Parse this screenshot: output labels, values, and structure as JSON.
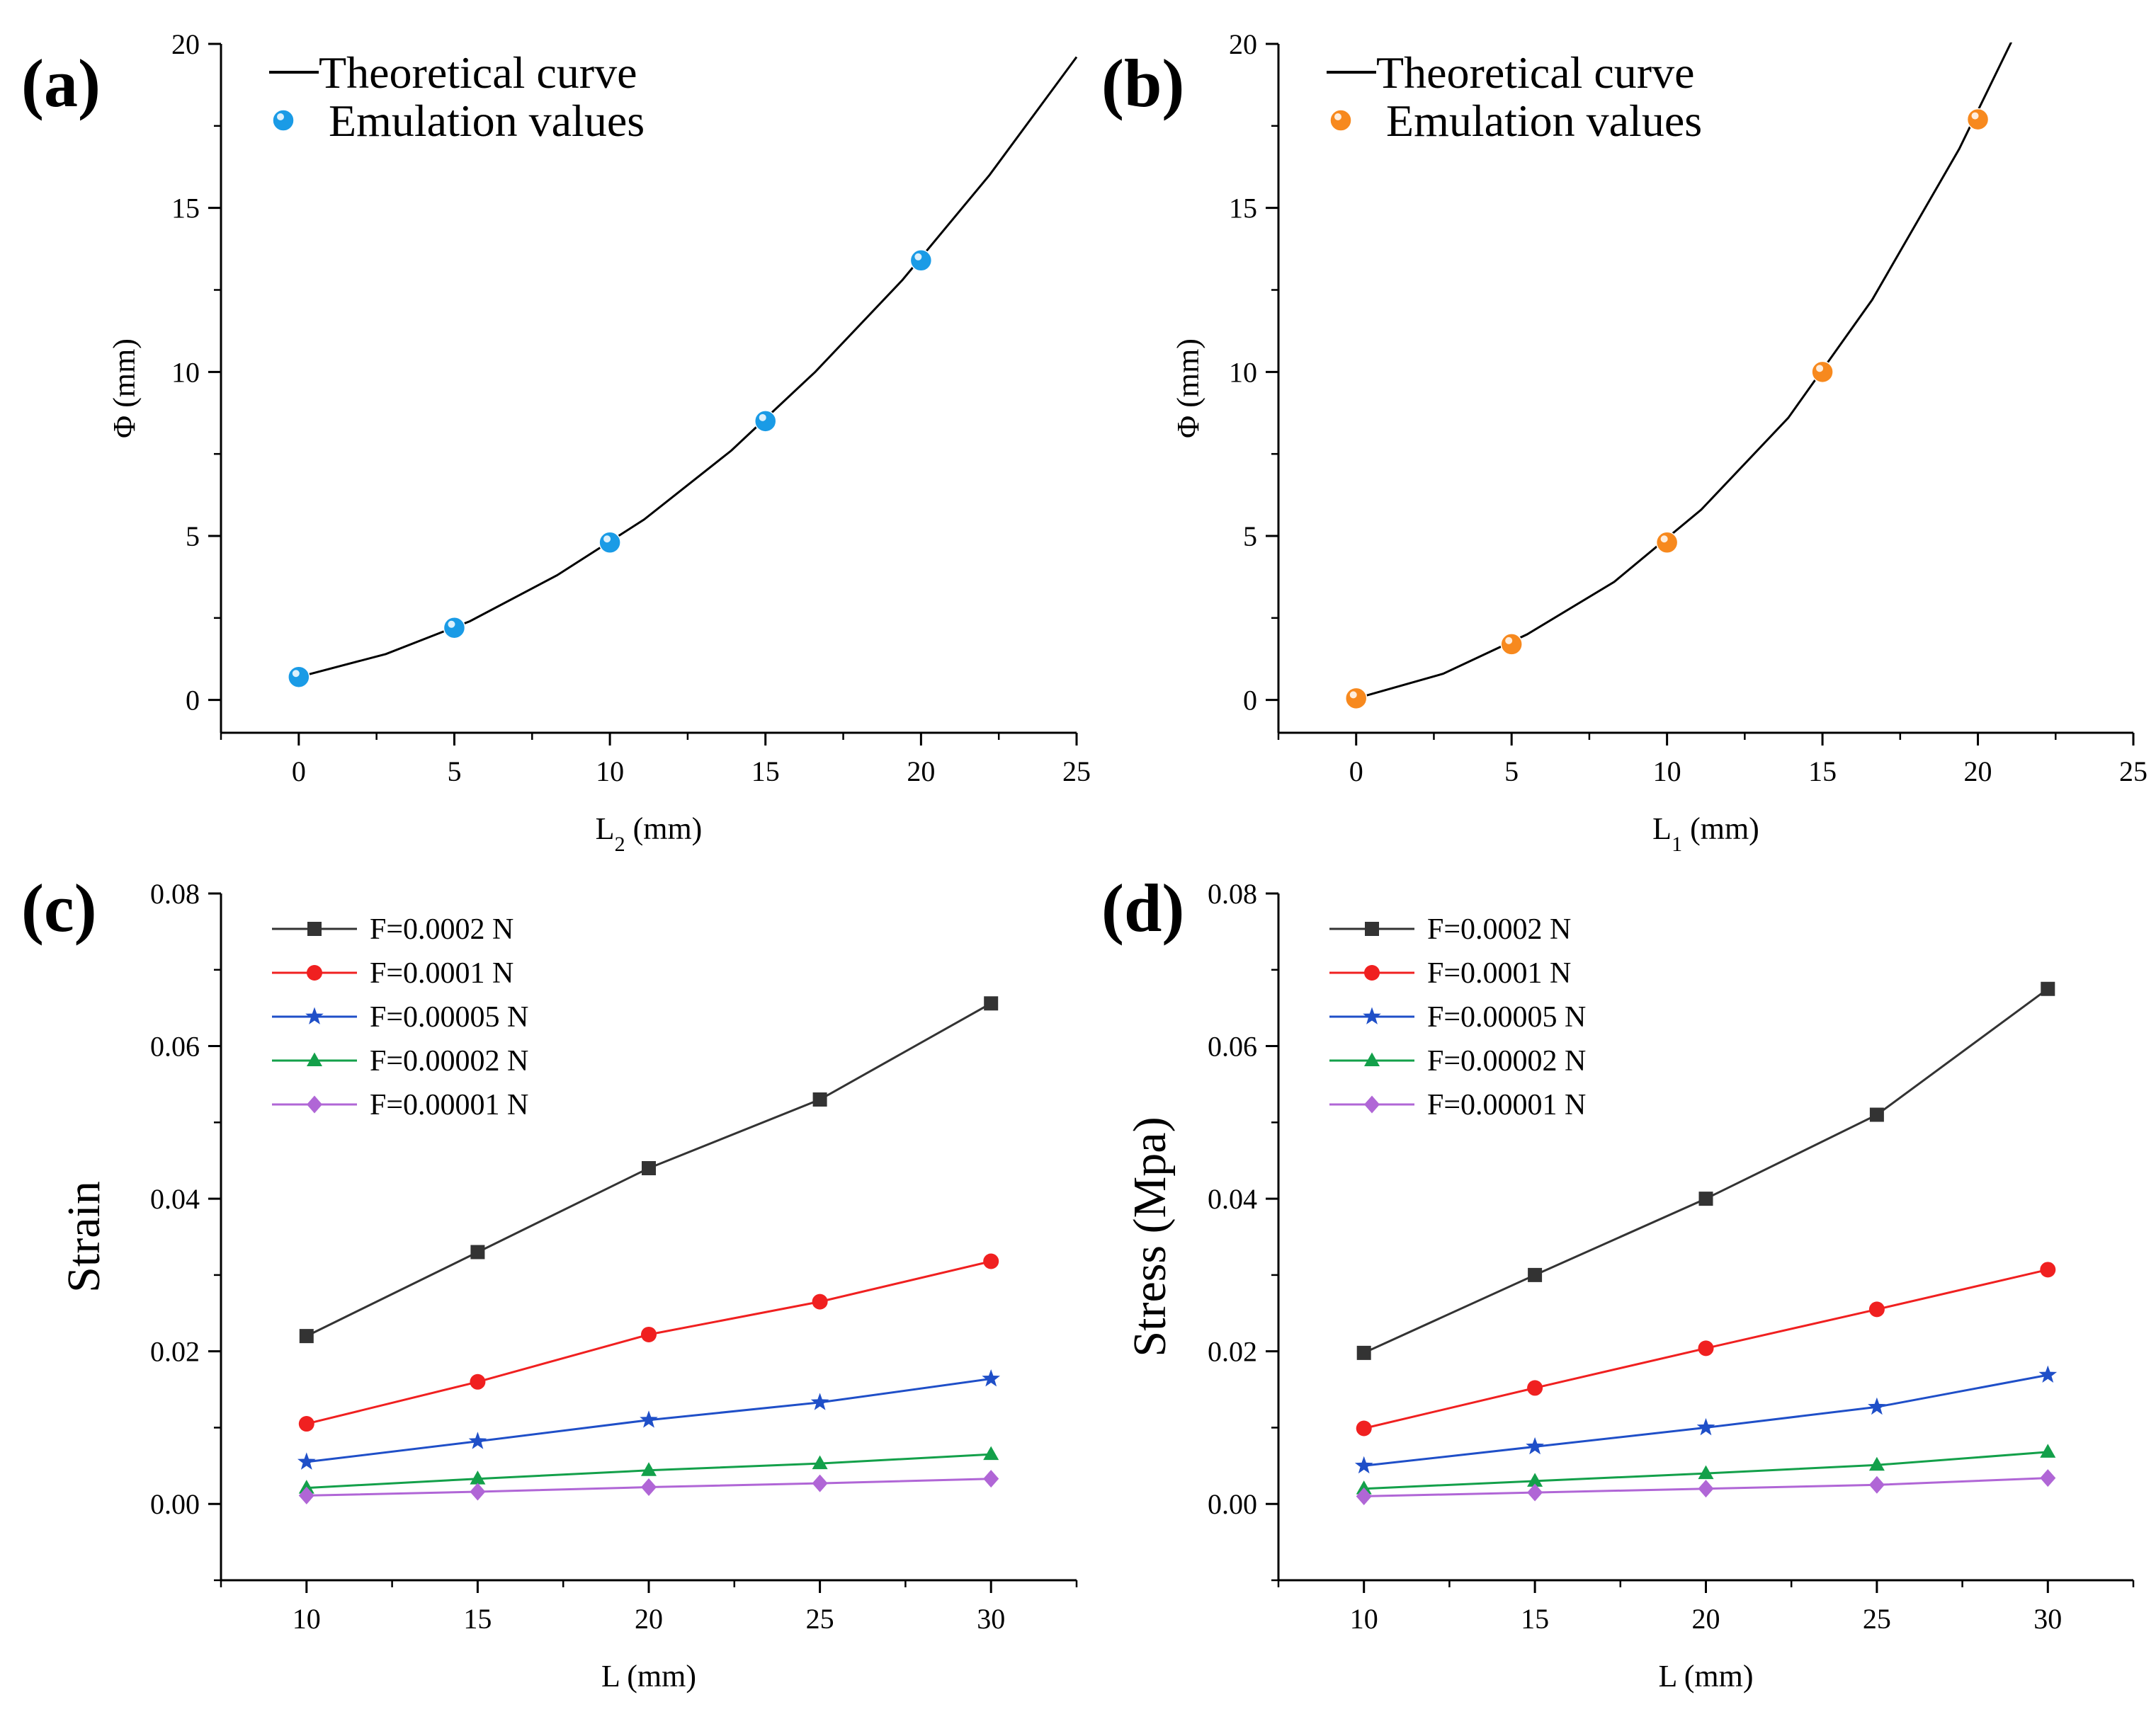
{
  "panels": {
    "a": {
      "label": "(a)"
    },
    "b": {
      "label": "(b)"
    },
    "c": {
      "label": "(c)"
    },
    "d": {
      "label": "(d)"
    }
  },
  "chart_data": [
    {
      "id": "a",
      "type": "line",
      "title": "",
      "xlabel": "L₂ (mm)",
      "xlabel_main": "L",
      "xlabel_sub": "2",
      "xlabel_unit": " (mm)",
      "ylabel": "Φ (mm)",
      "xlim": [
        -2.5,
        25
      ],
      "ylim": [
        -1,
        20
      ],
      "xticks": [
        0,
        5,
        10,
        15,
        20,
        25
      ],
      "yticks": [
        0,
        5,
        10,
        15,
        20
      ],
      "legend_position": "top-left",
      "series": [
        {
          "name": "Theoretical curve",
          "kind": "line",
          "color": "#000000",
          "x": [
            0,
            2.8,
            5.5,
            8.3,
            11.1,
            13.9,
            16.6,
            19.4,
            22.2,
            25
          ],
          "y": [
            0.7,
            1.4,
            2.4,
            3.8,
            5.5,
            7.6,
            10.0,
            12.8,
            16.0,
            19.6
          ]
        },
        {
          "name": "Emulation values",
          "kind": "scatter",
          "color": "#1a9be6",
          "x": [
            0,
            5,
            10,
            15,
            20
          ],
          "y": [
            0.7,
            2.2,
            4.8,
            8.5,
            13.4
          ]
        }
      ]
    },
    {
      "id": "b",
      "type": "line",
      "title": "",
      "xlabel": "L₁ (mm)",
      "xlabel_main": "L",
      "xlabel_sub": "1",
      "xlabel_unit": " (mm)",
      "ylabel": "Φ (mm)",
      "xlim": [
        -2.5,
        25
      ],
      "ylim": [
        -1,
        20
      ],
      "xticks": [
        0,
        5,
        10,
        15,
        20,
        25
      ],
      "yticks": [
        0,
        5,
        10,
        15,
        20
      ],
      "legend_position": "top-left",
      "series": [
        {
          "name": "Theoretical curve",
          "kind": "line",
          "color": "#000000",
          "x": [
            0,
            2.8,
            5.5,
            8.3,
            11.1,
            13.9,
            16.6,
            19.4,
            21.2
          ],
          "y": [
            0.05,
            0.8,
            2.0,
            3.6,
            5.8,
            8.6,
            12.2,
            16.8,
            20.3
          ]
        },
        {
          "name": "Emulation values",
          "kind": "scatter",
          "color": "#f7891e",
          "x": [
            0,
            5,
            10,
            15,
            20
          ],
          "y": [
            0.05,
            1.7,
            4.8,
            10.0,
            17.7
          ]
        }
      ]
    },
    {
      "id": "c",
      "type": "line",
      "title": "",
      "xlabel": "L (mm)",
      "ylabel": "Strain",
      "xlim": [
        7.5,
        32.5
      ],
      "ylim": [
        -0.01,
        0.08
      ],
      "xticks": [
        10,
        15,
        20,
        25,
        30
      ],
      "yticks": [
        0.0,
        0.02,
        0.04,
        0.06,
        0.08
      ],
      "legend_position": "top-left",
      "series": [
        {
          "name": "F=0.0002 N",
          "marker": "square",
          "color": "#333333",
          "x": [
            10,
            15,
            20,
            25,
            30
          ],
          "y": [
            0.022,
            0.033,
            0.044,
            0.053,
            0.0656
          ]
        },
        {
          "name": "F=0.0001 N",
          "marker": "circle",
          "color": "#f02020",
          "x": [
            10,
            15,
            20,
            25,
            30
          ],
          "y": [
            0.0105,
            0.016,
            0.0222,
            0.0265,
            0.0318
          ]
        },
        {
          "name": "F=0.00005 N",
          "marker": "star",
          "color": "#1f4fc8",
          "x": [
            10,
            15,
            20,
            25,
            30
          ],
          "y": [
            0.0055,
            0.0082,
            0.011,
            0.0133,
            0.0164
          ]
        },
        {
          "name": "F=0.00002 N",
          "marker": "triangle",
          "color": "#13a04a",
          "x": [
            10,
            15,
            20,
            25,
            30
          ],
          "y": [
            0.0021,
            0.0033,
            0.0044,
            0.0053,
            0.0065
          ]
        },
        {
          "name": "F=0.00001 N",
          "marker": "diamond",
          "color": "#b066d6",
          "x": [
            10,
            15,
            20,
            25,
            30
          ],
          "y": [
            0.0011,
            0.0016,
            0.0022,
            0.0027,
            0.0033
          ]
        }
      ]
    },
    {
      "id": "d",
      "type": "line",
      "title": "",
      "xlabel": "L (mm)",
      "ylabel": "Stress (Mpa)",
      "xlim": [
        7.5,
        32.5
      ],
      "ylim": [
        -0.01,
        0.08
      ],
      "xticks": [
        10,
        15,
        20,
        25,
        30
      ],
      "yticks": [
        0.0,
        0.02,
        0.04,
        0.06,
        0.08
      ],
      "legend_position": "top-left",
      "series": [
        {
          "name": "F=0.0002 N",
          "marker": "square",
          "color": "#333333",
          "x": [
            10,
            15,
            20,
            25,
            30
          ],
          "y": [
            0.0198,
            0.03,
            0.04,
            0.051,
            0.0675
          ]
        },
        {
          "name": "F=0.0001 N",
          "marker": "circle",
          "color": "#f02020",
          "x": [
            10,
            15,
            20,
            25,
            30
          ],
          "y": [
            0.0099,
            0.0152,
            0.0204,
            0.0255,
            0.0307
          ]
        },
        {
          "name": "F=0.00005 N",
          "marker": "star",
          "color": "#1f4fc8",
          "x": [
            10,
            15,
            20,
            25,
            30
          ],
          "y": [
            0.005,
            0.0075,
            0.01,
            0.0127,
            0.0169
          ]
        },
        {
          "name": "F=0.00002 N",
          "marker": "triangle",
          "color": "#13a04a",
          "x": [
            10,
            15,
            20,
            25,
            30
          ],
          "y": [
            0.002,
            0.003,
            0.004,
            0.0051,
            0.0068
          ]
        },
        {
          "name": "F=0.00001 N",
          "marker": "diamond",
          "color": "#b066d6",
          "x": [
            10,
            15,
            20,
            25,
            30
          ],
          "y": [
            0.001,
            0.0015,
            0.002,
            0.0025,
            0.0034
          ]
        }
      ]
    }
  ]
}
